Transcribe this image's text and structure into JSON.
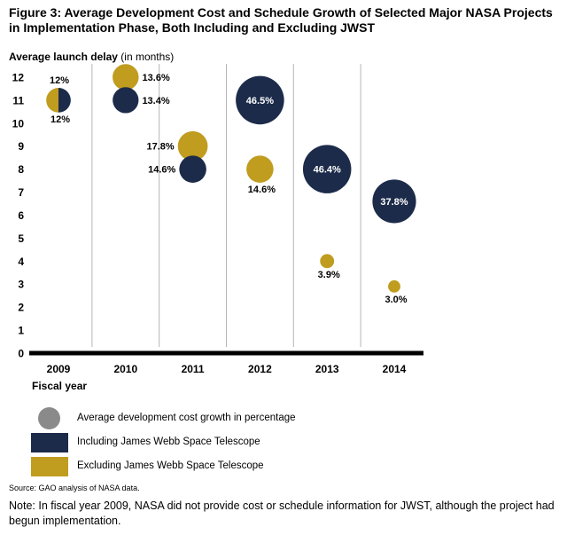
{
  "header": {
    "title": "Figure 3: Average Development Cost and Schedule Growth of Selected Major NASA Projects in Implementation Phase, Both Including and Excluding JWST"
  },
  "colors": {
    "including": "#1c2b4a",
    "excluding": "#c09c1f",
    "legend_gray": "#8a8a8a",
    "gridline": "#b5b5b5",
    "axis": "#000000",
    "label_text": "#000000",
    "inside_label_text": "#ffffff"
  },
  "chart_data": {
    "type": "bubble",
    "title": "Figure 3: Average Development Cost and Schedule Growth of Selected Major NASA Projects in Implementation Phase, Both Including and Excluding JWST",
    "xlabel": "Fiscal year",
    "ylabel_bold": "Average launch delay",
    "ylabel_unit": " (in months)",
    "ylim": [
      0,
      12
    ],
    "yticks": [
      0,
      1,
      2,
      3,
      4,
      5,
      6,
      7,
      8,
      9,
      10,
      11,
      12
    ],
    "categories": [
      "2009",
      "2010",
      "2011",
      "2012",
      "2013",
      "2014"
    ],
    "grid": "vertical-separators-between-years",
    "bubble_size_encodes": "Average development cost growth in percentage",
    "series": [
      {
        "name": "Including James Webb Space Telescope",
        "key": "including",
        "points": [
          {
            "year": "2010",
            "launch_delay_months": 11,
            "cost_growth_pct": 13.4,
            "label": "13.4%",
            "label_pos": "right"
          },
          {
            "year": "2011",
            "launch_delay_months": 8,
            "cost_growth_pct": 14.6,
            "label": "14.6%",
            "label_pos": "left"
          },
          {
            "year": "2012",
            "launch_delay_months": 11,
            "cost_growth_pct": 46.5,
            "label": "46.5%",
            "label_pos": "inside"
          },
          {
            "year": "2013",
            "launch_delay_months": 8,
            "cost_growth_pct": 46.4,
            "label": "46.4%",
            "label_pos": "inside"
          },
          {
            "year": "2014",
            "launch_delay_months": 6.6,
            "cost_growth_pct": 37.8,
            "label": "37.8%",
            "label_pos": "inside"
          }
        ]
      },
      {
        "name": "Excluding James Webb Space Telescope",
        "key": "excluding",
        "points": [
          {
            "year": "2010",
            "launch_delay_months": 12,
            "cost_growth_pct": 13.6,
            "label": "13.6%",
            "label_pos": "right"
          },
          {
            "year": "2011",
            "launch_delay_months": 9,
            "cost_growth_pct": 17.8,
            "label": "17.8%",
            "label_pos": "left"
          },
          {
            "year": "2012",
            "launch_delay_months": 8,
            "cost_growth_pct": 14.6,
            "label": "14.6%",
            "label_pos": "below"
          },
          {
            "year": "2013",
            "launch_delay_months": 4,
            "cost_growth_pct": 3.9,
            "label": "3.9%",
            "label_pos": "below"
          },
          {
            "year": "2014",
            "launch_delay_months": 2.9,
            "cost_growth_pct": 3.0,
            "label": "3.0%",
            "label_pos": "below"
          }
        ]
      }
    ],
    "combined_2009": {
      "year": "2009",
      "launch_delay_months": 11,
      "cost_growth_pct": 12,
      "label_above": "12%",
      "label_below": "12%",
      "left_half": "excluding",
      "right_half": "including"
    }
  },
  "legend": {
    "items": [
      {
        "swatch": "circle",
        "color_key": "legend_gray",
        "label": "Average development cost growth in percentage"
      },
      {
        "swatch": "rect",
        "color_key": "including",
        "label": "Including James Webb Space Telescope"
      },
      {
        "swatch": "rect",
        "color_key": "excluding",
        "label": "Excluding James Webb Space Telescope"
      }
    ]
  },
  "footer": {
    "source": "Source: GAO analysis of NASA data.",
    "note": "Note: In fiscal year 2009, NASA did not provide cost or schedule information for JWST, although the project had begun implementation."
  }
}
